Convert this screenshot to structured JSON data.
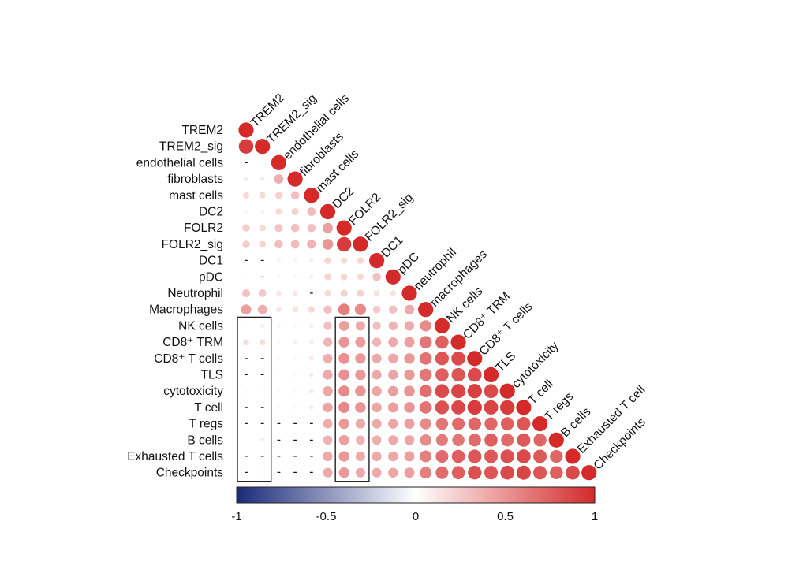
{
  "chart_data": {
    "type": "heatmap",
    "subtype": "correlation-lower-triangle",
    "variables": [
      "TREM2",
      "TREM2_sig",
      "endothelial cells",
      "fibroblasts",
      "mast cells",
      "DC2",
      "FOLR2",
      "FOLR2_sig",
      "DC1",
      "pDC",
      "Neutrophil",
      "Macrophages",
      "NK cells",
      "CD8⁺ TRM",
      "CD8⁺ T cells",
      "TLS",
      "cytotoxicity",
      "T cell",
      "T regs",
      "B cells",
      "Exhausted T cells",
      "Checkpoints"
    ],
    "diagonal_labels": [
      "TREM2",
      "TREM2_sig",
      "endothelial cells",
      "fibroblasts",
      "mast cells",
      "DC2",
      "FOLR2",
      "FOLR2_sig",
      "DC1",
      "pDC",
      "neutrophil",
      "macrophages",
      "NK cells",
      "CD8⁺ TRM",
      "CD8⁺ T cells",
      "TLS",
      "cytotoxicity",
      "T cell",
      "T regs",
      "B cells",
      "Exhausted T cell",
      "Checkpoints"
    ],
    "label_colors": {
      "TREM2": "#2e3f8f",
      "TREM2_sig": "#2e3f8f",
      "FOLR2": "#d42a2a",
      "FOLR2_sig": "#d42a2a"
    },
    "matrix": [
      [
        1.0
      ],
      [
        0.92,
        1.0
      ],
      [
        null,
        0.03,
        1.0
      ],
      [
        0.1,
        0.1,
        0.38,
        1.0
      ],
      [
        0.18,
        0.18,
        0.22,
        0.3,
        1.0
      ],
      [
        0.05,
        0.07,
        0.18,
        0.22,
        0.32,
        1.0
      ],
      [
        0.24,
        0.18,
        0.28,
        0.3,
        0.3,
        0.45,
        1.0
      ],
      [
        0.24,
        0.2,
        0.3,
        0.32,
        0.35,
        0.5,
        0.92,
        1.0
      ],
      [
        null,
        null,
        0.07,
        0.06,
        0.08,
        0.2,
        0.18,
        0.2,
        1.0
      ],
      [
        0.03,
        null,
        0.05,
        0.05,
        0.08,
        0.2,
        0.2,
        0.18,
        0.3,
        1.0
      ],
      [
        0.28,
        0.26,
        0.12,
        0.12,
        null,
        0.18,
        0.22,
        0.22,
        0.15,
        0.14,
        1.0
      ],
      [
        0.45,
        0.38,
        0.12,
        0.14,
        0.18,
        0.3,
        0.6,
        0.55,
        0.25,
        0.3,
        0.4,
        1.0
      ],
      [
        0.03,
        0.08,
        0.06,
        0.05,
        0.08,
        0.3,
        0.45,
        0.4,
        0.3,
        0.35,
        0.4,
        0.55,
        1.0
      ],
      [
        0.16,
        0.16,
        0.05,
        0.07,
        0.1,
        0.35,
        0.5,
        0.46,
        0.35,
        0.4,
        0.45,
        0.65,
        0.75,
        1.0
      ],
      [
        null,
        null,
        0.04,
        0.05,
        0.1,
        0.38,
        0.52,
        0.48,
        0.4,
        0.42,
        0.48,
        0.66,
        0.8,
        0.85,
        1.0
      ],
      [
        null,
        null,
        0.03,
        0.05,
        0.1,
        0.4,
        0.52,
        0.48,
        0.4,
        0.42,
        0.48,
        0.65,
        0.75,
        0.8,
        0.85,
        1.0
      ],
      [
        0.03,
        0.03,
        0.04,
        0.05,
        0.1,
        0.42,
        0.55,
        0.5,
        0.42,
        0.45,
        0.5,
        0.68,
        0.85,
        0.88,
        0.9,
        0.85,
        1.0
      ],
      [
        null,
        null,
        0.04,
        0.05,
        0.1,
        0.42,
        0.55,
        0.5,
        0.42,
        0.45,
        0.5,
        0.66,
        0.82,
        0.86,
        0.92,
        0.88,
        0.92,
        1.0
      ],
      [
        null,
        null,
        null,
        null,
        null,
        0.38,
        0.48,
        0.4,
        0.4,
        0.42,
        0.45,
        0.55,
        0.65,
        0.7,
        0.72,
        0.72,
        0.75,
        0.8,
        1.0
      ],
      [
        0.02,
        -0.07,
        null,
        null,
        null,
        0.36,
        0.45,
        0.36,
        0.38,
        0.4,
        0.42,
        0.55,
        0.62,
        0.65,
        0.7,
        0.75,
        0.7,
        0.78,
        0.72,
        1.0
      ],
      [
        null,
        null,
        null,
        null,
        null,
        0.4,
        0.48,
        0.4,
        0.4,
        0.42,
        0.45,
        0.6,
        0.7,
        0.75,
        0.8,
        0.78,
        0.82,
        0.85,
        0.78,
        0.72,
        1.0
      ],
      [
        null,
        -0.03,
        null,
        null,
        null,
        0.4,
        0.48,
        0.4,
        0.4,
        0.42,
        0.45,
        0.6,
        0.7,
        0.75,
        0.82,
        0.8,
        0.85,
        0.88,
        0.8,
        0.75,
        0.85,
        1.0
      ]
    ],
    "colorbar": {
      "range": [
        -1,
        1
      ],
      "tick_labels": [
        "-1",
        "-0.5",
        "0",
        "0.5",
        "1"
      ],
      "low_color": "#1a2a78",
      "mid_color": "#ffffff",
      "high_color": "#d42a2a"
    },
    "highlight_boxes": [
      {
        "rows": [
          "NK cells",
          "Checkpoints"
        ],
        "cols": [
          "TREM2",
          "TREM2_sig"
        ]
      },
      {
        "rows": [
          "NK cells",
          "Checkpoints"
        ],
        "cols": [
          "FOLR2",
          "FOLR2_sig"
        ]
      }
    ],
    "null_marker": "-"
  }
}
